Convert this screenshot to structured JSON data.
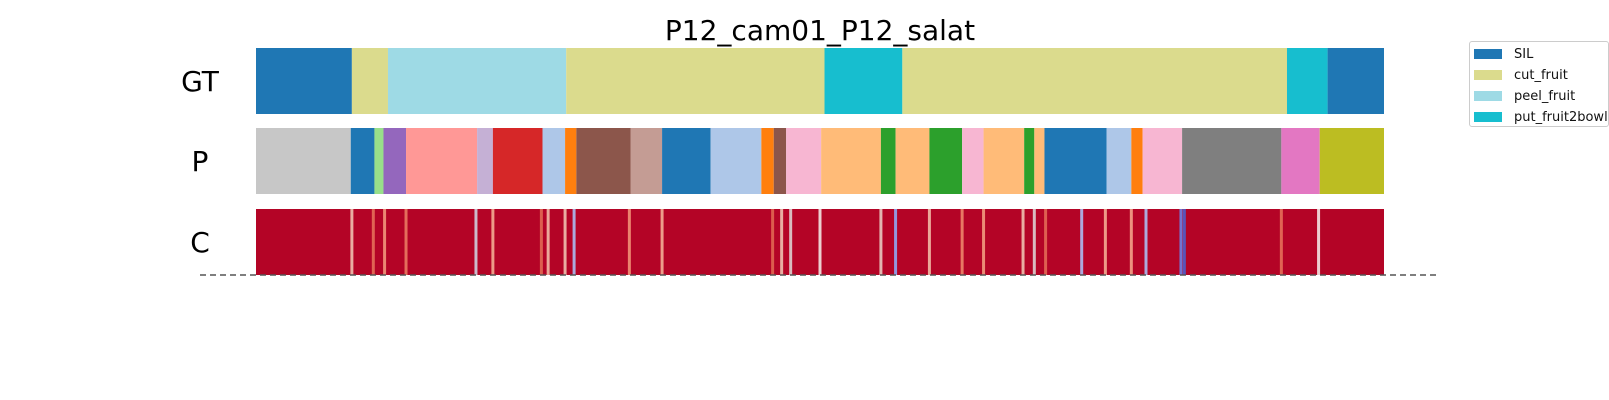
{
  "chart_data": {
    "type": "segmentation-timeline",
    "title": "P12_cam01_P12_salat",
    "rows": [
      {
        "label": "GT",
        "segments": [
          {
            "start": 0.0,
            "end": 8.5,
            "label": "SIL",
            "color": "#1f77b4"
          },
          {
            "start": 8.5,
            "end": 11.7,
            "label": "cut_fruit",
            "color": "#dbdb8d"
          },
          {
            "start": 11.7,
            "end": 27.5,
            "label": "peel_fruit",
            "color": "#9edae5"
          },
          {
            "start": 27.5,
            "end": 50.4,
            "label": "cut_fruit",
            "color": "#dbdb8d"
          },
          {
            "start": 50.4,
            "end": 57.3,
            "label": "put_fruit2bowl",
            "color": "#17becf"
          },
          {
            "start": 57.3,
            "end": 91.4,
            "label": "cut_fruit",
            "color": "#dbdb8d"
          },
          {
            "start": 91.4,
            "end": 95.0,
            "label": "put_fruit2bowl",
            "color": "#17becf"
          },
          {
            "start": 95.0,
            "end": 100.0,
            "label": "SIL",
            "color": "#1f77b4"
          }
        ]
      },
      {
        "label": "P",
        "segments": [
          {
            "start": 0.0,
            "end": 8.4,
            "color": "#c7c7c7"
          },
          {
            "start": 8.4,
            "end": 10.5,
            "color": "#1f77b4"
          },
          {
            "start": 10.5,
            "end": 11.3,
            "color": "#98df8a"
          },
          {
            "start": 11.3,
            "end": 13.3,
            "color": "#9467bd"
          },
          {
            "start": 13.3,
            "end": 19.6,
            "color": "#ff9896"
          },
          {
            "start": 19.6,
            "end": 21.0,
            "color": "#c5b0d5"
          },
          {
            "start": 21.0,
            "end": 25.4,
            "color": "#d62728"
          },
          {
            "start": 25.4,
            "end": 27.4,
            "color": "#aec7e8"
          },
          {
            "start": 27.4,
            "end": 28.4,
            "color": "#ff7f0e"
          },
          {
            "start": 28.4,
            "end": 33.2,
            "color": "#8c564b"
          },
          {
            "start": 33.2,
            "end": 36.0,
            "color": "#c49c94"
          },
          {
            "start": 36.0,
            "end": 40.3,
            "color": "#1f77b4"
          },
          {
            "start": 40.3,
            "end": 44.8,
            "color": "#aec7e8"
          },
          {
            "start": 44.8,
            "end": 45.9,
            "color": "#ff7f0e"
          },
          {
            "start": 45.9,
            "end": 47.0,
            "color": "#8c564b"
          },
          {
            "start": 47.0,
            "end": 50.1,
            "color": "#f7b6d2"
          },
          {
            "start": 50.1,
            "end": 55.4,
            "color": "#ffbb78"
          },
          {
            "start": 55.4,
            "end": 56.7,
            "color": "#2ca02c"
          },
          {
            "start": 56.7,
            "end": 59.7,
            "color": "#ffbb78"
          },
          {
            "start": 59.7,
            "end": 62.6,
            "color": "#2ca02c"
          },
          {
            "start": 62.6,
            "end": 64.5,
            "color": "#f7b6d2"
          },
          {
            "start": 64.5,
            "end": 68.1,
            "color": "#ffbb78"
          },
          {
            "start": 68.1,
            "end": 69.0,
            "color": "#2ca02c"
          },
          {
            "start": 69.0,
            "end": 69.9,
            "color": "#ffbb78"
          },
          {
            "start": 69.9,
            "end": 75.4,
            "color": "#1f77b4"
          },
          {
            "start": 75.4,
            "end": 77.6,
            "color": "#aec7e8"
          },
          {
            "start": 77.6,
            "end": 78.6,
            "color": "#ff7f0e"
          },
          {
            "start": 78.6,
            "end": 82.1,
            "color": "#f7b6d2"
          },
          {
            "start": 82.1,
            "end": 90.9,
            "color": "#7f7f7f"
          },
          {
            "start": 90.9,
            "end": 94.3,
            "color": "#e377c2"
          },
          {
            "start": 94.3,
            "end": 100.0,
            "color": "#bcbd22"
          }
        ]
      },
      {
        "label": "C",
        "base_color": "#b40426",
        "low_confidence_marks": [
          {
            "pos": 8.5,
            "color": "#f2cbb7"
          },
          {
            "pos": 10.4,
            "color": "#e8765c"
          },
          {
            "pos": 11.4,
            "color": "#f5a081"
          },
          {
            "pos": 13.3,
            "color": "#ec8165"
          },
          {
            "pos": 19.5,
            "color": "#d0dae9"
          },
          {
            "pos": 21.0,
            "color": "#f7b599"
          },
          {
            "pos": 25.3,
            "color": "#e46e56"
          },
          {
            "pos": 25.9,
            "color": "#f4c5ad"
          },
          {
            "pos": 27.4,
            "color": "#f2cbb7"
          },
          {
            "pos": 28.2,
            "color": "#aac7fd"
          },
          {
            "pos": 33.1,
            "color": "#f49a7b"
          },
          {
            "pos": 36.0,
            "color": "#f7b89c"
          },
          {
            "pos": 45.8,
            "color": "#e36c55"
          },
          {
            "pos": 46.6,
            "color": "#f1ccb8"
          },
          {
            "pos": 47.4,
            "color": "#dedcdb"
          },
          {
            "pos": 50.0,
            "color": "#f6f2ef"
          },
          {
            "pos": 55.4,
            "color": "#ead5c9"
          },
          {
            "pos": 56.7,
            "color": "#8db0fe"
          },
          {
            "pos": 59.7,
            "color": "#f4c5ad"
          },
          {
            "pos": 62.6,
            "color": "#f18d6f"
          },
          {
            "pos": 64.5,
            "color": "#f6a385"
          },
          {
            "pos": 68.0,
            "color": "#f2cbb7"
          },
          {
            "pos": 69.0,
            "color": "#dedcdb"
          },
          {
            "pos": 70.0,
            "color": "#e57058"
          },
          {
            "pos": 73.2,
            "color": "#aac7fd"
          },
          {
            "pos": 75.3,
            "color": "#f7b599"
          },
          {
            "pos": 77.6,
            "color": "#f7ac8e"
          },
          {
            "pos": 78.9,
            "color": "#aac7fd"
          },
          {
            "pos": 82.0,
            "color": "#6788ee"
          },
          {
            "pos": 82.3,
            "color": "#4a63d3"
          },
          {
            "pos": 94.2,
            "color": "#f6f2ef"
          },
          {
            "pos": 90.9,
            "color": "#e8765c"
          }
        ]
      }
    ],
    "legend": {
      "placement": "top-right",
      "entries": [
        {
          "label": "SIL",
          "color": "#1f77b4"
        },
        {
          "label": "cut_fruit",
          "color": "#dbdb8d"
        },
        {
          "label": "peel_fruit",
          "color": "#9edae5"
        },
        {
          "label": "put_fruit2bowl",
          "color": "#17becf"
        }
      ]
    },
    "baseline": "dashed"
  }
}
